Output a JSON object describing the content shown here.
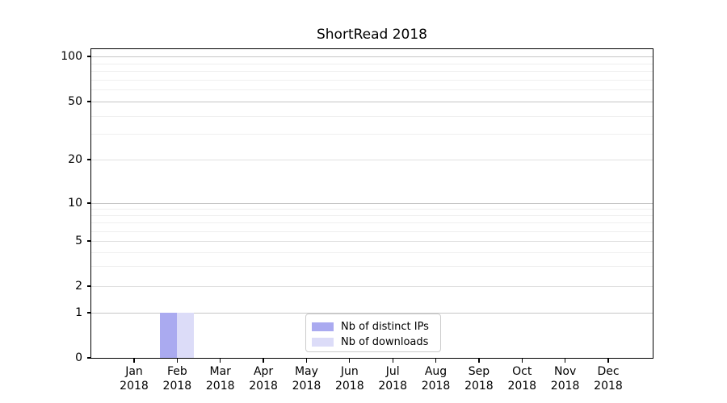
{
  "title": "ShortRead 2018",
  "legend": {
    "items": [
      {
        "label": "Nb of distinct IPs",
        "color": "#aaaaf0"
      },
      {
        "label": "Nb of downloads",
        "color": "#dcdcf8"
      }
    ]
  },
  "y_axis": {
    "tick_labels": [
      "100",
      "50",
      "20",
      "10",
      "5",
      "2",
      "1",
      "0"
    ]
  },
  "x_axis": {
    "months": [
      "Jan",
      "Feb",
      "Mar",
      "Apr",
      "May",
      "Jun",
      "Jul",
      "Aug",
      "Sep",
      "Oct",
      "Nov",
      "Dec"
    ],
    "year": "2018"
  },
  "chart_data": {
    "type": "bar",
    "categories": [
      "Jan 2018",
      "Feb 2018",
      "Mar 2018",
      "Apr 2018",
      "May 2018",
      "Jun 2018",
      "Jul 2018",
      "Aug 2018",
      "Sep 2018",
      "Oct 2018",
      "Nov 2018",
      "Dec 2018"
    ],
    "series": [
      {
        "name": "Nb of distinct IPs",
        "color": "#aaaaf0",
        "values": [
          0,
          1,
          0,
          0,
          0,
          0,
          0,
          0,
          0,
          0,
          0,
          0
        ]
      },
      {
        "name": "Nb of downloads",
        "color": "#dcdcf8",
        "values": [
          0,
          1,
          0,
          0,
          0,
          0,
          0,
          0,
          0,
          0,
          0,
          0
        ]
      }
    ],
    "title": "ShortRead 2018",
    "xlabel": "",
    "ylabel": "",
    "yscale": "symlog",
    "ylim": [
      0,
      115
    ],
    "yticks": [
      100,
      50,
      20,
      10,
      5,
      2,
      1,
      0
    ],
    "grid": "both",
    "legend_position": "lower center, inside axes"
  }
}
